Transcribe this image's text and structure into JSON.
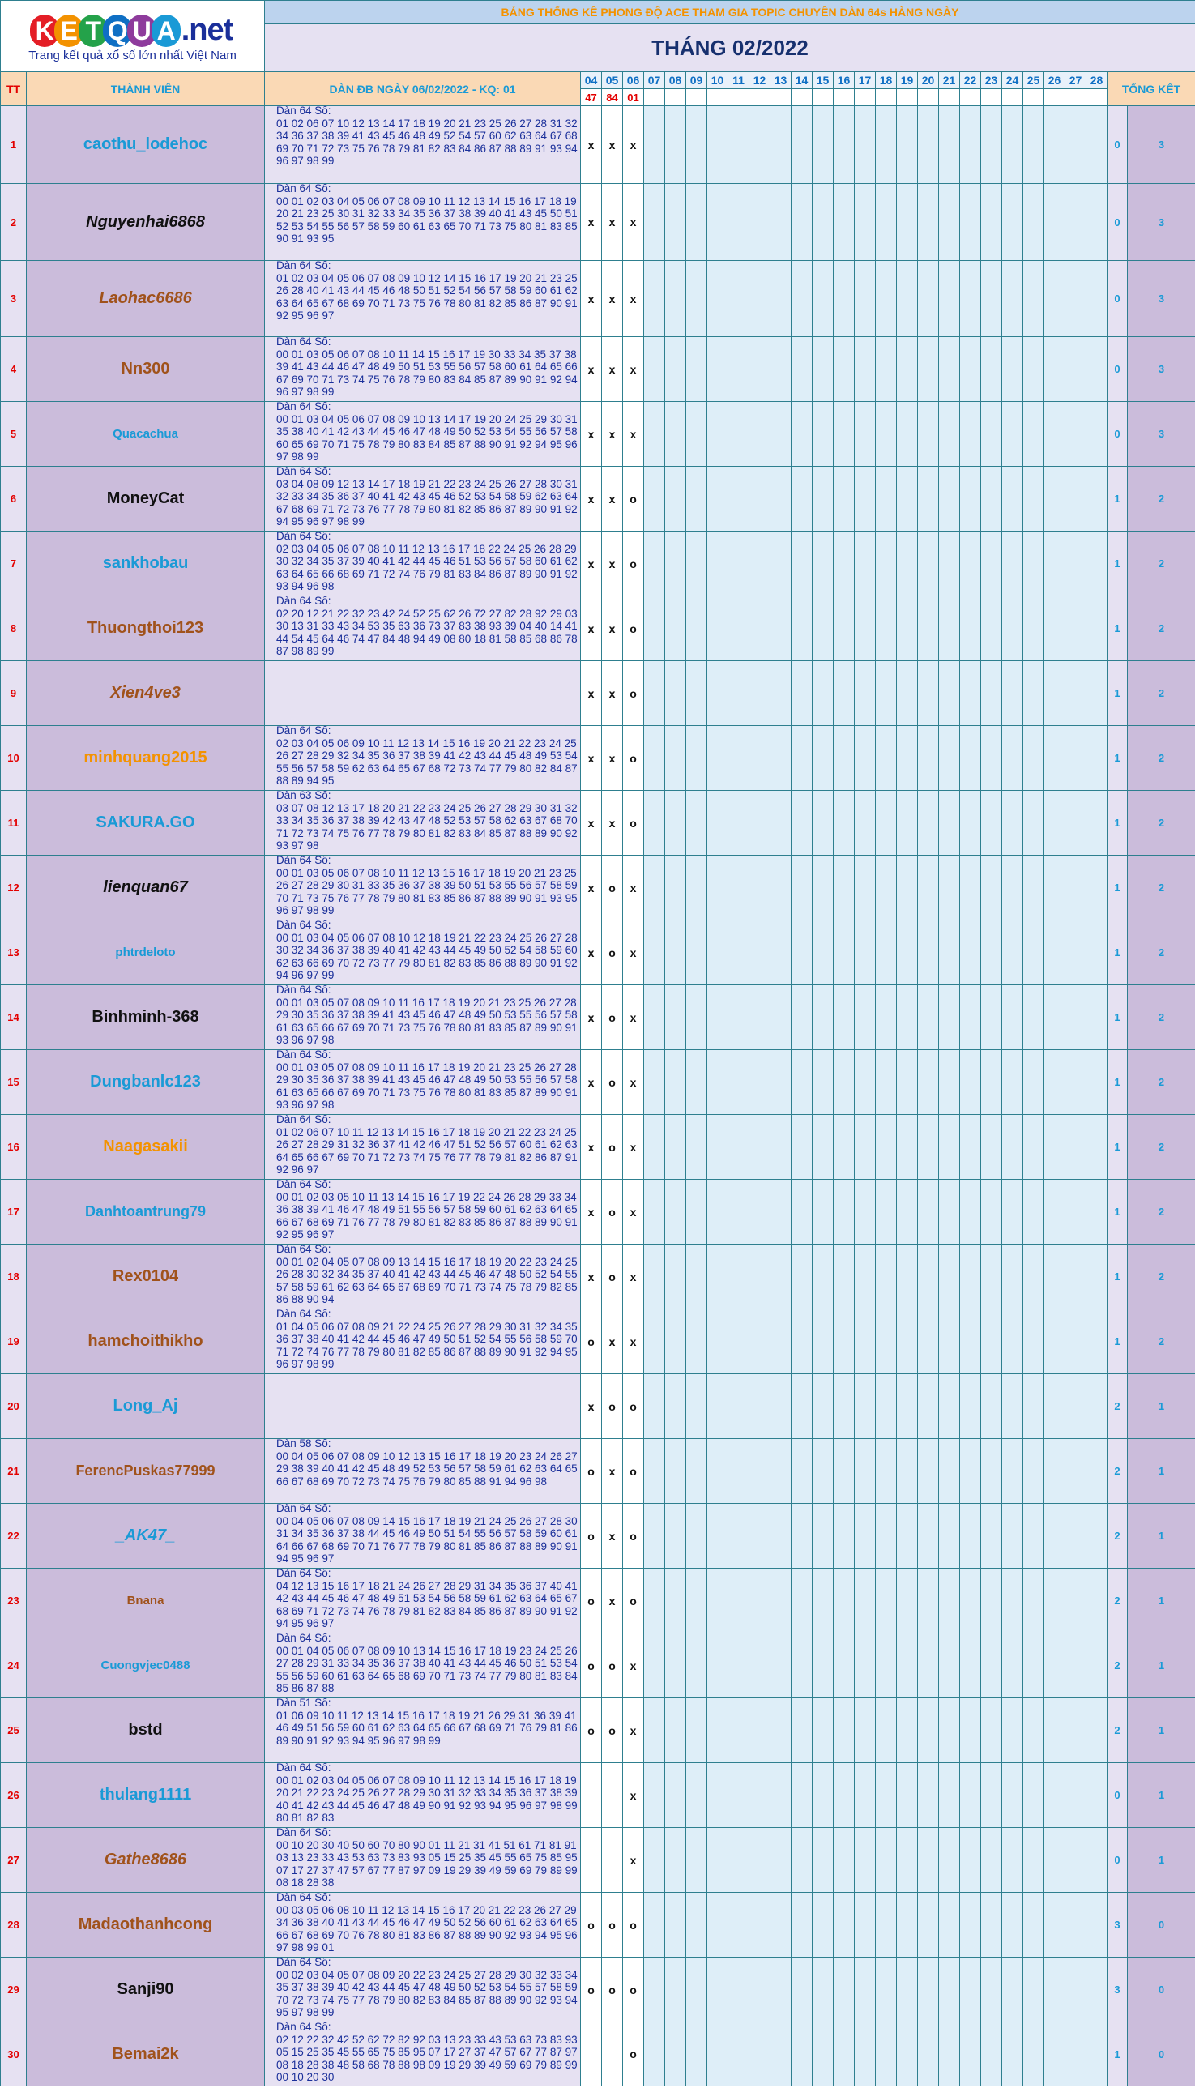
{
  "logo": {
    "letters": [
      "K",
      "E",
      "T",
      "Q",
      "U",
      "A"
    ],
    "letter_colors": [
      "#e41e26",
      "#f39200",
      "#24a24a",
      "#0f6fc4",
      "#8e3b9c",
      "#1a9ad6"
    ],
    "suffix": ".net",
    "tagline": "Trang kết quả xổ số lớn nhất Việt Nam"
  },
  "banner": "BẢNG THỐNG KÊ PHONG ĐỘ ACE THAM GIA TOPIC CHUYÊN DÀN 64s HÀNG NGÀY",
  "month_title": "THÁNG 02/2022",
  "headers": {
    "tt": "TT",
    "member": "THÀNH VIÊN",
    "dan": "DÀN ĐB NGÀY 06/02/2022 - KQ: 01",
    "total": "TỔNG KẾT"
  },
  "days": [
    "04",
    "05",
    "06",
    "07",
    "08",
    "09",
    "10",
    "11",
    "12",
    "13",
    "14",
    "15",
    "16",
    "17",
    "18",
    "19",
    "20",
    "21",
    "22",
    "23",
    "24",
    "25",
    "26",
    "27",
    "28"
  ],
  "results": [
    "47",
    "84",
    "01"
  ],
  "rows": [
    {
      "tt": "1",
      "name": "caothu_lodehoc",
      "color": "#1a9ad6",
      "italic": false,
      "dan": "Dàn 64 Số:\n01 02 06 07 10 12 13 14 17 18 19 20 21 23 25 26 27 28 31 32 34 36 37 38 39 41 43 45 46 48 49 52 54 57 60 62 63 64 67 68 69 70 71 72 73 75 76 78 79 81 82 83 84 86 87 88 89 91 93 94 96 97 98 99",
      "marks": [
        "x",
        "x",
        "x"
      ],
      "sum": "0",
      "total": "3"
    },
    {
      "tt": "2",
      "name": "Nguyenhai6868",
      "color": "#111111",
      "italic": true,
      "dan": "Dàn 64 Số:\n00 01 02 03 04 05 06 07 08 09 10 11 12 13 14 15 16 17 18 19 20 21 23 25 30 31 32 33 34 35 36 37 38 39 40 41 43 45 50 51 52 53 54 55 56 57 58 59 60 61 63 65 70 71 73 75 80 81 83 85 90 91 93 95",
      "marks": [
        "x",
        "x",
        "x"
      ],
      "sum": "0",
      "total": "3"
    },
    {
      "tt": "3",
      "name": "Laohac6686",
      "color": "#a0521b",
      "italic": true,
      "dan": "Dàn 64 Số:\n01 02 03 04 05 06 07 08 09 10 12 14 15 16 17 19 20 21 23 25 26 28 40 41 43 44 45 46 48 50 51 52 54 56 57 58 59 60 61 62 63 64 65 67 68 69 70 71 73 75 76 78 80 81 82 85 86 87 90 91 92 95 96 97",
      "marks": [
        "x",
        "x",
        "x"
      ],
      "sum": "0",
      "total": "3"
    },
    {
      "tt": "4",
      "name": "Nn300",
      "color": "#a0521b",
      "italic": false,
      "dan": "Dàn 64 Số:\n00 01 03 05 06 07 08 10 11 14 15 16 17 19 30 33 34 35 37 38 39 41 43 44 46 47 48 49 50 51 53 55 56 57 58 60 61 64 65 66 67 69 70 71 73 74 75 76 78 79 80 83 84 85 87 89 90 91 92 94 96 97 98 99",
      "marks": [
        "x",
        "x",
        "x"
      ],
      "sum": "0",
      "total": "3"
    },
    {
      "tt": "5",
      "name": "Quacachua",
      "color": "#1a9ad6",
      "italic": false,
      "dan": "Dàn 64 Số:\n00 01 03 04 05 06 07 08 09 10 13 14 17 19 20 24 25 29 30 31 35 38 40 41 42 43 44 45 46 47 48 49 50 52 53 54 55 56 57 58 60 65 69 70 71 75 78 79 80 83 84 85 87 88 90 91 92 94 95 96 97 98 99",
      "marks": [
        "x",
        "x",
        "x"
      ],
      "sum": "0",
      "total": "3"
    },
    {
      "tt": "6",
      "name": "MoneyCat",
      "color": "#111111",
      "italic": false,
      "dan": "Dàn 64 Số:\n03 04 08 09 12 13 14 17 18 19 21 22 23 24 25 26 27 28 30 31 32 33 34 35 36 37 40 41 42 43 45 46 52 53 54 58 59 62 63 64 67 68 69 71 72 73 76 77 78 79 80 81 82 85 86 87 89 90 91 92 94 95 96 97 98 99",
      "marks": [
        "x",
        "x",
        "o"
      ],
      "sum": "1",
      "total": "2"
    },
    {
      "tt": "7",
      "name": "sankhobau",
      "color": "#1a9ad6",
      "italic": false,
      "dan": "Dàn 64 Số:\n02 03 04 05 06 07 08 10 11 12 13 16 17 18 22 24 25 26 28 29 30 32 34 35 37 39 40 41 42 44 45 46 51 53 56 57 58 60 61 62 63 64 65 66 68 69 71 72 74 76 79 81 83 84 86 87 89 90 91 92 93 94 96 98",
      "marks": [
        "x",
        "x",
        "o"
      ],
      "sum": "1",
      "total": "2"
    },
    {
      "tt": "8",
      "name": "Thuongthoi123",
      "color": "#a0521b",
      "italic": false,
      "dan": "Dàn 64 Số:\n02 20 12 21 22 32 23 42 24 52 25 62 26 72 27 82 28 92 29 03 30 13 31 33 43 34 53 35 63 36 73 37 83 38 93 39 04 40 14 41 44 54 45 64 46 74 47 84 48 94 49 08 80 18 81 58 85 68 86 78 87 98 89 99",
      "marks": [
        "x",
        "x",
        "o"
      ],
      "sum": "1",
      "total": "2"
    },
    {
      "tt": "9",
      "name": "Xien4ve3",
      "color": "#a0521b",
      "italic": true,
      "dan": "",
      "marks": [
        "x",
        "x",
        "o"
      ],
      "sum": "1",
      "total": "2"
    },
    {
      "tt": "10",
      "name": "minhquang2015",
      "color": "#f39200",
      "italic": false,
      "dan": "Dàn 64 Số:\n02 03 04 05 06 09 10 11 12 13 14 15 16 19 20 21 22 23 24 25 26 27 28 29 32 34 35 36 37 38 39 41 42 43 44 45 48 49 53 54 55 56 57 58 59 62 63 64 65 67 68 72 73 74 77 79 80 82 84 87 88 89 94 95",
      "marks": [
        "x",
        "x",
        "o"
      ],
      "sum": "1",
      "total": "2"
    },
    {
      "tt": "11",
      "name": "SAKURA.GO",
      "color": "#1a9ad6",
      "italic": false,
      "dan": "Dàn 63 Số:\n03 07 08 12 13 17 18 20 21 22 23 24 25 26 27 28 29 30 31 32 33 34 35 36 37 38 39 42 43 47 48 52 53 57 58 62 63 67 68 70 71 72 73 74 75 76 77 78 79 80 81 82 83 84 85 87 88 89 90 92 93 97 98",
      "marks": [
        "x",
        "x",
        "o"
      ],
      "sum": "1",
      "total": "2"
    },
    {
      "tt": "12",
      "name": "lienquan67",
      "color": "#111111",
      "italic": true,
      "dan": "Dàn 64 Số:\n00 01 03 05 06 07 08 10 11 12 13 15 16 17 18 19 20 21 23 25 26 27 28 29 30 31 33 35 36 37 38 39 50 51 53 55 56 57 58 59 70 71 73 75 76 77 78 79 80 81 83 85 86 87 88 89 90 91 93 95 96 97 98 99",
      "marks": [
        "x",
        "o",
        "x"
      ],
      "sum": "1",
      "total": "2"
    },
    {
      "tt": "13",
      "name": "phtrdeloto",
      "color": "#1a9ad6",
      "italic": false,
      "dan": "Dàn 64 Số:\n00 01 03 04 05 06 07 08 10 12 18 19 21 22 23 24 25 26 27 28 30 32 34 36 37 38 39 40 41 42 43 44 45 49 50 52 54 58 59 60 62 63 66 69 70 72 73 77 79 80 81 82 83 85 86 88 89 90 91 92 94 96 97 99",
      "marks": [
        "x",
        "o",
        "x"
      ],
      "sum": "1",
      "total": "2"
    },
    {
      "tt": "14",
      "name": "Binhminh-368",
      "color": "#111111",
      "italic": false,
      "dan": "Dàn 64 Số:\n00 01 03 05 07 08 09 10 11 16 17 18 19 20 21 23 25 26 27 28 29 30 35 36 37 38 39 41 43 45 46 47 48 49 50 53 55 56 57 58 61 63 65 66 67 69 70 71 73 75 76 78 80 81 83 85 87 89 90 91 93 96 97 98",
      "marks": [
        "x",
        "o",
        "x"
      ],
      "sum": "1",
      "total": "2"
    },
    {
      "tt": "15",
      "name": "Dungbanlc123",
      "color": "#1a9ad6",
      "italic": false,
      "dan": "Dàn 64 Số:\n00 01 03 05 07 08 09 10 11 16 17 18 19 20 21 23 25 26 27 28 29 30 35 36 37 38 39 41 43 45 46 47 48 49 50 53 55 56 57 58 61 63 65 66 67 69 70 71 73 75 76 78 80 81 83 85 87 89 90 91 93 96 97 98",
      "marks": [
        "x",
        "o",
        "x"
      ],
      "sum": "1",
      "total": "2"
    },
    {
      "tt": "16",
      "name": "Naagasakii",
      "color": "#f39200",
      "italic": false,
      "dan": "Dàn 64 Số:\n01 02 06 07 10 11 12 13 14 15 16 17 18 19 20 21 22 23 24 25 26 27 28 29 31 32 36 37 41 42 46 47 51 52 56 57 60 61 62 63 64 65 66 67 69 70 71 72 73 74 75 76 77 78 79 81 82 86 87 91 92 96 97",
      "marks": [
        "x",
        "o",
        "x"
      ],
      "sum": "1",
      "total": "2"
    },
    {
      "tt": "17",
      "name": "Danhtoantrung79",
      "color": "#1a9ad6",
      "italic": false,
      "dan": "Dàn 64 Số:\n00 01 02 03 05 10 11 13 14 15 16 17 19 22 24 26 28 29 33 34 36 38 39 41 46 47 48 49 51 55 56 57 58 59 60 61 62 63 64 65 66 67 68 69 71 76 77 78 79 80 81 82 83 85 86 87 88 89 90 91 92 95 96 97",
      "marks": [
        "x",
        "o",
        "x"
      ],
      "sum": "1",
      "total": "2"
    },
    {
      "tt": "18",
      "name": "Rex0104",
      "color": "#a0521b",
      "italic": false,
      "dan": "Dàn 64 Số:\n00 01 02 04 05 07 08 09 13 14 15 16 17 18 19 20 22 23 24 25 26 28 30 32 34 35 37 40 41 42 43 44 45 46 47 48 50 52 54 55 57 58 59 61 62 63 64 65 67 68 69 70 71 73 74 75 78 79 82 85 86 88 90 94",
      "marks": [
        "x",
        "o",
        "x"
      ],
      "sum": "1",
      "total": "2"
    },
    {
      "tt": "19",
      "name": "hamchoithikho",
      "color": "#a0521b",
      "italic": false,
      "dan": "Dàn 64 Số:\n01 04 05 06 07 08 09 21 22 24 25 26 27 28 29 30 31 32 34 35 36 37 38 40 41 42 44 45 46 47 49 50 51 52 54 55 56 58 59 70 71 72 74 76 77 78 79 80 81 82 85 86 87 88 89 90 91 92 94 95 96 97 98 99",
      "marks": [
        "o",
        "x",
        "x"
      ],
      "sum": "1",
      "total": "2"
    },
    {
      "tt": "20",
      "name": "Long_Aj",
      "color": "#1a9ad6",
      "italic": false,
      "dan": "",
      "marks": [
        "x",
        "o",
        "o"
      ],
      "sum": "2",
      "total": "1"
    },
    {
      "tt": "21",
      "name": "FerencPuskas77999",
      "color": "#a0521b",
      "italic": false,
      "dan": "Dàn 58 Số:\n00 04 05 06 07 08 09 10 12 13 15 16 17 18 19 20 23 24 26 27 29 38 39 40 41 42 45 48 49 52 53 56 57 58 59 61 62 63 64 65 66 67 68 69 70 72 73 74 75 76 79 80 85 88 91 94 96 98",
      "marks": [
        "o",
        "x",
        "o"
      ],
      "sum": "2",
      "total": "1"
    },
    {
      "tt": "22",
      "name": "_AK47_",
      "color": "#1a9ad6",
      "italic": true,
      "dan": "Dàn 64 Số:\n00 04 05 06 07 08 09 14 15 16 17 18 19 21 24 25 26 27 28 30 31 34 35 36 37 38 44 45 46 49 50 51 54 55 56 57 58 59 60 61 64 66 67 68 69 70 71 76 77 78 79 80 81 85 86 87 88 89 90 91 94 95 96 97",
      "marks": [
        "o",
        "x",
        "o"
      ],
      "sum": "2",
      "total": "1"
    },
    {
      "tt": "23",
      "name": "Bnana",
      "color": "#a0521b",
      "italic": false,
      "dan": "Dàn 64 Số:\n04 12 13 15 16 17 18 21 24 26 27 28 29 31 34 35 36 37 40 41 42 43 44 45 46 47 48 49 51 53 54 56 58 59 61 62 63 64 65 67 68 69 71 72 73 74 76 78 79 81 82 83 84 85 86 87 89 90 91 92 94 95 96 97",
      "marks": [
        "o",
        "x",
        "o"
      ],
      "sum": "2",
      "total": "1"
    },
    {
      "tt": "24",
      "name": "Cuongvjec0488",
      "color": "#1a9ad6",
      "italic": false,
      "dan": "Dàn 64 Số:\n00 01 04 05 06 07 08 09 10 13 14 15 16 17 18 19 23 24 25 26 27 28 29 31 33 34 35 36 37 38 40 41 43 44 45 46 50 51 53 54 55 56 59 60 61 63 64 65 68 69 70 71 73 74 77 79 80 81 83 84 85 86 87 88",
      "marks": [
        "o",
        "o",
        "x"
      ],
      "sum": "2",
      "total": "1"
    },
    {
      "tt": "25",
      "name": "bstd",
      "color": "#111111",
      "italic": false,
      "dan": "Dàn 51 Số:\n01 06 09 10 11 12 13 14 15 16 17 18 19 21 26 29 31 36 39 41 46 49 51 56 59 60 61 62 63 64 65 66 67 68 69 71 76 79 81 86 89 90 91 92 93 94 95 96 97 98 99",
      "marks": [
        "o",
        "o",
        "x"
      ],
      "sum": "2",
      "total": "1"
    },
    {
      "tt": "26",
      "name": "thulang1111",
      "color": "#1a9ad6",
      "italic": false,
      "dan": "Dàn 64 Số:\n00 01 02 03 04 05 06 07 08 09 10 11 12 13 14 15 16 17 18 19 20 21 22 23 24 25 26 27 28 29 30 31 32 33 34 35 36 37 38 39 40 41 42 43 44 45 46 47 48 49 90 91 92 93 94 95 96 97 98 99 80 81 82 83",
      "marks": [
        "",
        "",
        "x"
      ],
      "sum": "0",
      "total": "1"
    },
    {
      "tt": "27",
      "name": "Gathe8686",
      "color": "#a0521b",
      "italic": true,
      "dan": "Dàn 64 Số:\n00 10 20 30 40 50 60 70 80 90 01 11 21 31 41 51 61 71 81 91 03 13 23 33 43 53 63 73 83 93 05 15 25 35 45 55 65 75 85 95 07 17 27 37 47 57 67 77 87 97 09 19 29 39 49 59 69 79 89 99 08 18 28 38",
      "marks": [
        "",
        "",
        "x"
      ],
      "sum": "0",
      "total": "1"
    },
    {
      "tt": "28",
      "name": "Madaothanhcong",
      "color": "#a0521b",
      "italic": false,
      "dan": "Dàn 64 Số:\n00 03 05 06 08 10 11 12 13 14 15 16 17 20 21 22 23 26 27 29 34 36 38 40 41 43 44 45 46 47 49 50 52 56 60 61 62 63 64 65 66 67 68 69 70 76 78 80 81 83 86 87 88 89 90 92 93 94 95 96 97 98 99 01",
      "marks": [
        "o",
        "o",
        "o"
      ],
      "sum": "3",
      "total": "0"
    },
    {
      "tt": "29",
      "name": "Sanji90",
      "color": "#111111",
      "italic": false,
      "dan": "Dàn 64 Số:\n00 02 03 04 05 07 08 09 20 22 23 24 25 27 28 29 30 32 33 34 35 37 38 39 40 42 43 44 45 47 48 49 50 52 53 54 55 57 58 59 70 72 73 74 75 77 78 79 80 82 83 84 85 87 88 89 90 92 93 94 95 97 98 99",
      "marks": [
        "o",
        "o",
        "o"
      ],
      "sum": "3",
      "total": "0"
    },
    {
      "tt": "30",
      "name": "Bemai2k",
      "color": "#a0521b",
      "italic": false,
      "dan": "Dàn 64 Số:\n02 12 22 32 42 52 62 72 82 92 03 13 23 33 43 53 63 73 83 93 05 15 25 35 45 55 65 75 85 95 07 17 27 37 47 57 67 77 87 97 08 18 28 38 48 58 68 78 88 98 09 19 29 39 49 59 69 79 89 99 00 10 20 30",
      "marks": [
        "",
        "",
        "o"
      ],
      "sum": "1",
      "total": "0"
    }
  ]
}
